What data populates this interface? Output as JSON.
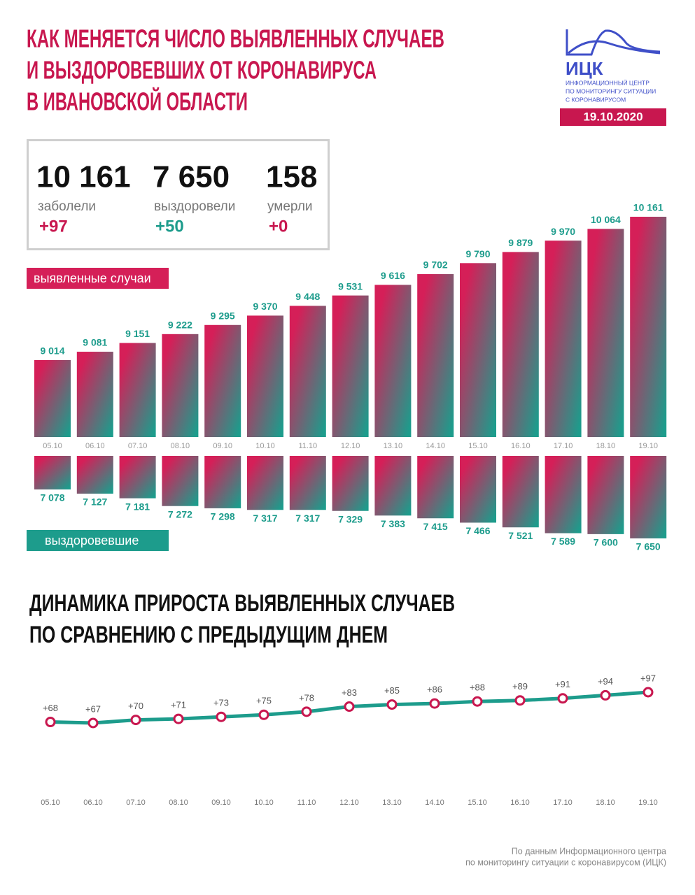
{
  "header": {
    "title": [
      "КАК МЕНЯЕТСЯ ЧИСЛО ВЫЯВЛЕННЫХ СЛУЧАЕВ",
      "И ВЫЗДОРОВЕВШИХ ОТ КОРОНАВИРУСА",
      "В ИВАНОВСКОЙ ОБЛАСТИ"
    ],
    "logo": "ИЦК",
    "logo_caption": [
      "ИНФОРМАЦИОННЫЙ ЦЕНТР",
      "ПО МОНИТОРИНГУ СИТУАЦИИ",
      "С КОРОНАВИРУСОМ"
    ],
    "date": "19.10.2020"
  },
  "stats": [
    {
      "value": "10 161",
      "label": "заболели",
      "delta": "+97"
    },
    {
      "value": "7 650",
      "label": "выздоровели",
      "delta": "+50"
    },
    {
      "value": "158",
      "label": "умерли",
      "delta": "+0"
    }
  ],
  "chart_data": [
    {
      "type": "bar",
      "label": "выявленные случаи",
      "colors": [
        "#d51f58",
        "#1d9c8c"
      ],
      "categories": [
        "05.10",
        "06.10",
        "07.10",
        "08.10",
        "09.10",
        "10.10",
        "11.10",
        "12.10",
        "13.10",
        "14.10",
        "15.10",
        "16.10",
        "17.10",
        "18.10",
        "19.10"
      ],
      "values": [
        9014,
        9081,
        9151,
        9222,
        9295,
        9370,
        9448,
        9531,
        9616,
        9702,
        9790,
        9879,
        9970,
        10064,
        10161
      ],
      "value_labels": [
        "9 014",
        "9 081",
        "9 151",
        "9 222",
        "9 295",
        "9 370",
        "9 448",
        "9 531",
        "9 616",
        "9 702",
        "9 790",
        "9 879",
        "9 970",
        "10 064",
        "10 161"
      ]
    },
    {
      "type": "bar-down",
      "label": "выздоровевшие",
      "colors": [
        "#d51f58",
        "#1d9c8c"
      ],
      "categories": [
        "05.10",
        "06.10",
        "07.10",
        "08.10",
        "09.10",
        "10.10",
        "11.10",
        "12.10",
        "13.10",
        "14.10",
        "15.10",
        "16.10",
        "17.10",
        "18.10",
        "19.10"
      ],
      "values": [
        7078,
        7127,
        7181,
        7272,
        7298,
        7317,
        7317,
        7329,
        7383,
        7415,
        7466,
        7521,
        7589,
        7600,
        7650
      ],
      "value_labels": [
        "7 078",
        "7 127",
        "7 181",
        "7 272",
        "7 298",
        "7 317",
        "7 317",
        "7 329",
        "7 383",
        "7 415",
        "7 466",
        "7 521",
        "7 589",
        "7 600",
        "7 650"
      ]
    },
    {
      "type": "line",
      "title": [
        "ДИНАМИКА ПРИРОСТА ВЫЯВЛЕННЫХ СЛУЧАЕВ",
        "ПО СРАВНЕНИЮ С ПРЕДЫДУЩИМ ДНЕМ"
      ],
      "color": "#1d9c8c",
      "marker_color": "#c8174f",
      "categories": [
        "05.10",
        "06.10",
        "07.10",
        "08.10",
        "09.10",
        "10.10",
        "11.10",
        "12.10",
        "13.10",
        "14.10",
        "15.10",
        "16.10",
        "17.10",
        "18.10",
        "19.10"
      ],
      "values": [
        68,
        67,
        70,
        71,
        73,
        75,
        78,
        83,
        85,
        86,
        88,
        89,
        91,
        94,
        97
      ],
      "value_labels": [
        "+68",
        "+67",
        "+70",
        "+71",
        "+73",
        "+75",
        "+78",
        "+83",
        "+85",
        "+86",
        "+88",
        "+89",
        "+91",
        "+94",
        "+97"
      ]
    }
  ],
  "footer": [
    "По данным Информационного центра",
    "по мониторингу ситуации с коронавирусом (ИЦК)"
  ]
}
